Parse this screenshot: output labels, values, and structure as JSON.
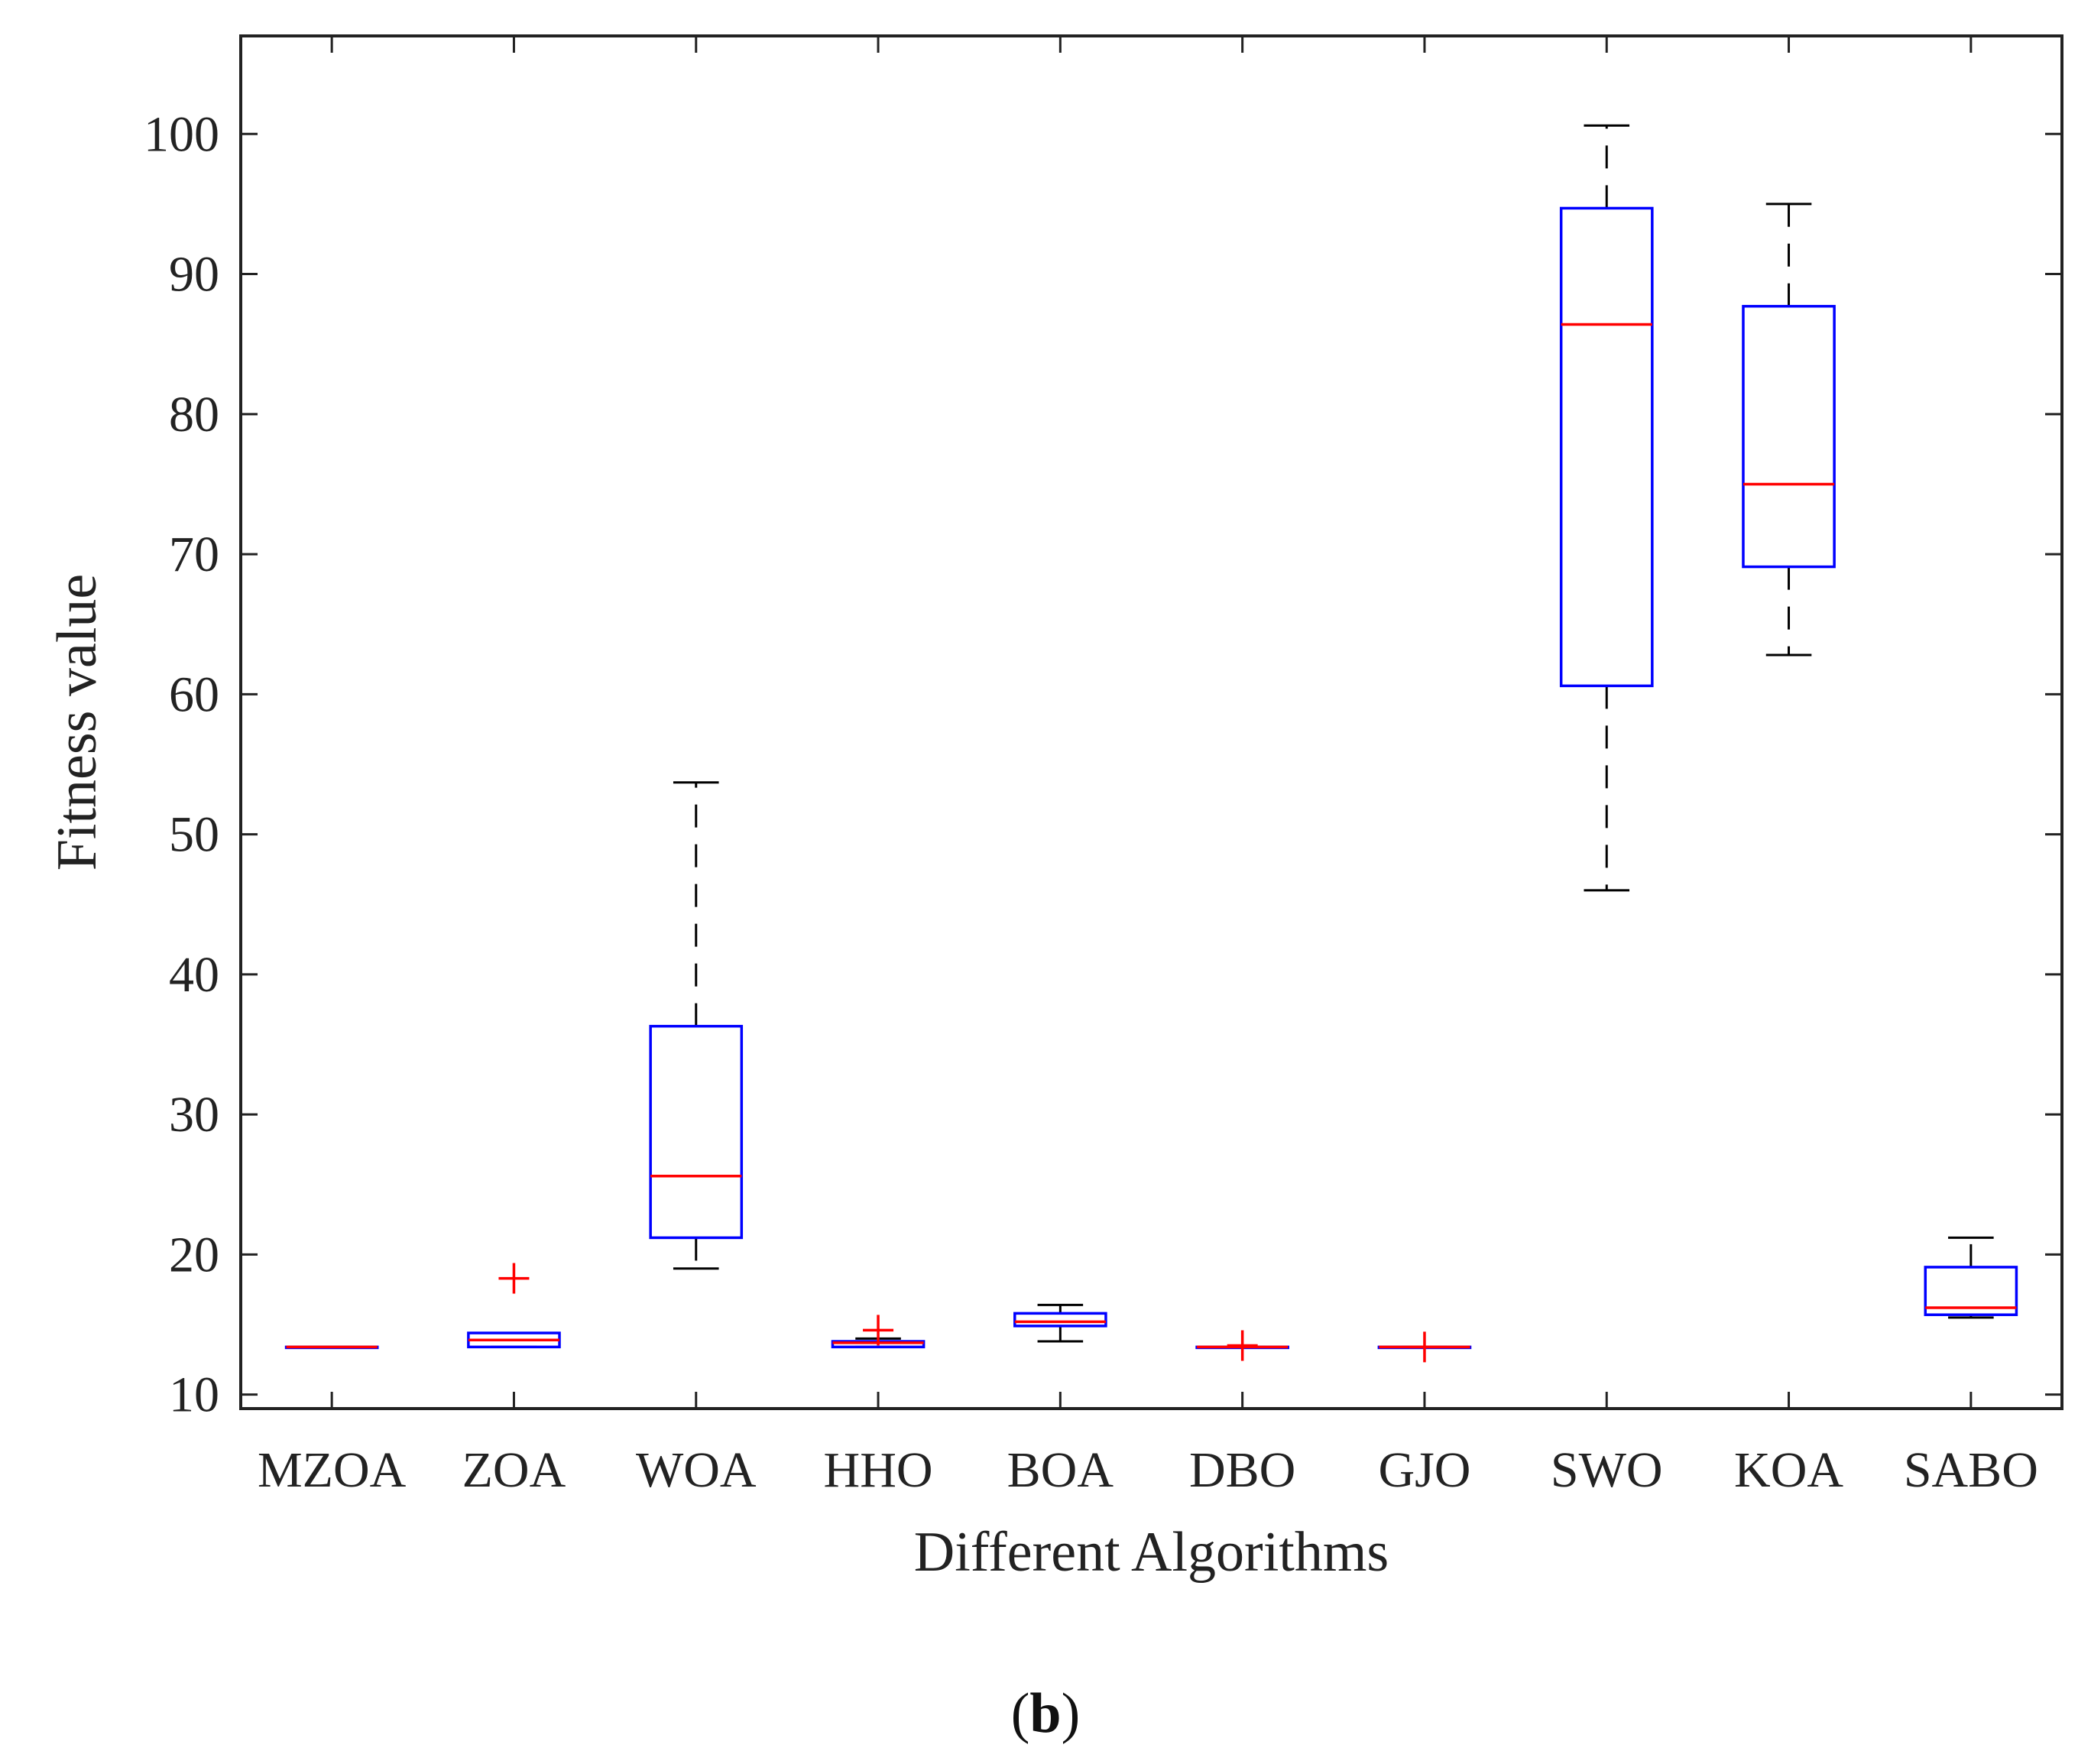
{
  "chart_data": {
    "type": "box",
    "xlabel": "Different Algorithms",
    "ylabel": "Fitness value",
    "ylim": [
      9,
      107
    ],
    "yticks": [
      10,
      20,
      30,
      40,
      50,
      60,
      70,
      80,
      90,
      100
    ],
    "categories": [
      "MZOA",
      "ZOA",
      "WOA",
      "HHO",
      "BOA",
      "DBO",
      "GJO",
      "SWO",
      "KOA",
      "SABO"
    ],
    "boxes": [
      {
        "name": "MZOA",
        "whisker_low": 13.4,
        "q1": 13.4,
        "median": 13.4,
        "q3": 13.4,
        "whisker_high": 13.4,
        "outliers": []
      },
      {
        "name": "ZOA",
        "whisker_low": 13.4,
        "q1": 13.4,
        "median": 13.9,
        "q3": 14.4,
        "whisker_high": 14.4,
        "outliers": [
          18.3
        ]
      },
      {
        "name": "WOA",
        "whisker_low": 19.0,
        "q1": 21.2,
        "median": 25.6,
        "q3": 36.3,
        "whisker_high": 53.7,
        "outliers": []
      },
      {
        "name": "HHO",
        "whisker_low": 13.4,
        "q1": 13.4,
        "median": 13.7,
        "q3": 13.8,
        "whisker_high": 14.0,
        "outliers": [
          14.6
        ]
      },
      {
        "name": "BOA",
        "whisker_low": 13.8,
        "q1": 14.9,
        "median": 15.2,
        "q3": 15.8,
        "whisker_high": 16.4,
        "outliers": []
      },
      {
        "name": "DBO",
        "whisker_low": 13.4,
        "q1": 13.4,
        "median": 13.4,
        "q3": 13.4,
        "whisker_high": 13.4,
        "outliers": [
          13.5
        ]
      },
      {
        "name": "GJO",
        "whisker_low": 13.4,
        "q1": 13.4,
        "median": 13.4,
        "q3": 13.4,
        "whisker_high": 13.4,
        "outliers": [
          13.4
        ]
      },
      {
        "name": "SWO",
        "whisker_low": 46.0,
        "q1": 60.6,
        "median": 86.4,
        "q3": 94.7,
        "whisker_high": 100.6,
        "outliers": []
      },
      {
        "name": "KOA",
        "whisker_low": 62.8,
        "q1": 69.1,
        "median": 75.0,
        "q3": 87.7,
        "whisker_high": 95.0,
        "outliers": []
      },
      {
        "name": "SABO",
        "whisker_low": 15.5,
        "q1": 15.7,
        "median": 16.2,
        "q3": 19.1,
        "whisker_high": 21.2,
        "outliers": []
      }
    ],
    "colors": {
      "box": "#0000ff",
      "median": "#ff0000",
      "whisker": "#000000",
      "outlier": "#ff0000",
      "axis": "#222222"
    }
  },
  "caption": {
    "open": "(",
    "letter": "b",
    "close": ")"
  }
}
